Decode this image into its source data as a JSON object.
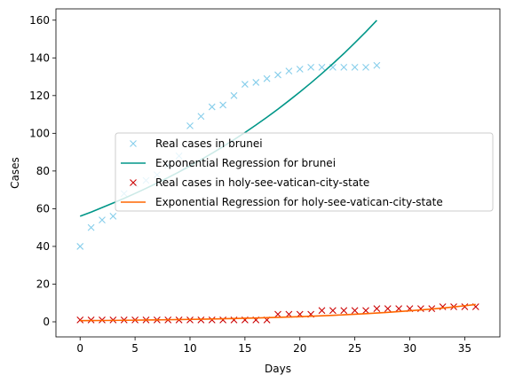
{
  "chart_data": {
    "type": "scatter",
    "title": "",
    "xlabel": "Days",
    "ylabel": "Cases",
    "xlim": [
      -2.2,
      38.2
    ],
    "ylim": [
      -8,
      166
    ],
    "x_ticks": [
      0,
      5,
      10,
      15,
      20,
      25,
      30,
      35
    ],
    "y_ticks": [
      0,
      20,
      40,
      60,
      80,
      100,
      120,
      140,
      160
    ],
    "grid": false,
    "legend_position": "center",
    "series": [
      {
        "name": "Real cases in brunei",
        "kind": "scatter",
        "marker": "x",
        "color": "#87ceeb",
        "x": [
          0,
          1,
          2,
          3,
          4,
          5,
          6,
          7,
          8,
          9,
          10,
          11,
          12,
          13,
          14,
          15,
          16,
          17,
          18,
          19,
          20,
          21,
          22,
          23,
          24,
          25,
          26,
          27
        ],
        "y": [
          40,
          50,
          54,
          56,
          68,
          73,
          75,
          78,
          83,
          88,
          104,
          109,
          114,
          115,
          120,
          126,
          127,
          129,
          131,
          133,
          134,
          135,
          135,
          135,
          135,
          135,
          135,
          136
        ]
      },
      {
        "name": "Exponential Regression for brunei",
        "kind": "line",
        "color": "#009688",
        "x": [
          0,
          1,
          2,
          3,
          4,
          5,
          6,
          7,
          8,
          9,
          10,
          11,
          12,
          13,
          14,
          15,
          16,
          17,
          18,
          19,
          20,
          21,
          22,
          23,
          24,
          25,
          26,
          27
        ],
        "y": [
          56.0,
          58.2,
          60.6,
          63.0,
          65.5,
          68.1,
          70.8,
          73.6,
          76.5,
          79.5,
          82.7,
          86.0,
          89.4,
          92.9,
          96.6,
          100.4,
          104.4,
          108.5,
          112.8,
          117.3,
          121.9,
          126.7,
          131.7,
          136.9,
          142.3,
          148.0,
          153.8,
          159.9
        ]
      },
      {
        "name": "Real cases in holy-see-vatican-city-state",
        "kind": "scatter",
        "marker": "x",
        "color": "#cc0000",
        "x": [
          0,
          1,
          2,
          3,
          4,
          5,
          6,
          7,
          8,
          9,
          10,
          11,
          12,
          13,
          14,
          15,
          16,
          17,
          18,
          19,
          20,
          21,
          22,
          23,
          24,
          25,
          26,
          27,
          28,
          29,
          30,
          31,
          32,
          33,
          34,
          35,
          36
        ],
        "y": [
          1,
          1,
          1,
          1,
          1,
          1,
          1,
          1,
          1,
          1,
          1,
          1,
          1,
          1,
          1,
          1,
          1,
          1,
          4,
          4,
          4,
          4,
          6,
          6,
          6,
          6,
          6,
          7,
          7,
          7,
          7,
          7,
          7,
          8,
          8,
          8,
          8
        ]
      },
      {
        "name": "Exponential Regression for holy-see-vatican-city-state",
        "kind": "line",
        "color": "#ff6600",
        "x": [
          0,
          1,
          2,
          3,
          4,
          5,
          6,
          7,
          8,
          9,
          10,
          11,
          12,
          13,
          14,
          15,
          16,
          17,
          18,
          19,
          20,
          21,
          22,
          23,
          24,
          25,
          26,
          27,
          28,
          29,
          30,
          31,
          32,
          33,
          34,
          35,
          36
        ],
        "y": [
          0.6,
          0.65,
          0.7,
          0.76,
          0.82,
          0.88,
          0.95,
          1.03,
          1.11,
          1.2,
          1.29,
          1.39,
          1.5,
          1.62,
          1.75,
          1.89,
          2.03,
          2.19,
          2.36,
          2.55,
          2.75,
          2.96,
          3.19,
          3.45,
          3.72,
          4.01,
          4.32,
          4.66,
          5.03,
          5.42,
          5.85,
          6.31,
          6.8,
          7.33,
          7.9,
          8.52,
          9.2
        ]
      }
    ]
  }
}
